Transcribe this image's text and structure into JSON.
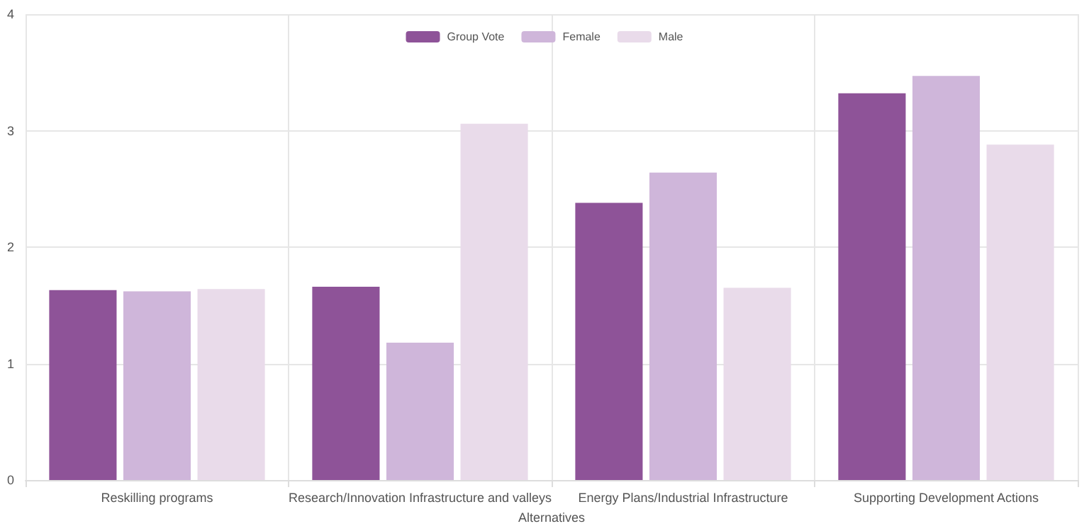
{
  "chart_data": {
    "type": "bar",
    "xlabel": "Alternatives",
    "categories": [
      "Reskilling programs",
      "Research/Innovation Infrastructure and valleys",
      "Energy Plans/Industrial Infrastructure",
      "Supporting Development Actions"
    ],
    "series": [
      {
        "name": "Group Vote",
        "color": "#8e5398",
        "values": [
          1.63,
          1.66,
          2.38,
          3.32
        ]
      },
      {
        "name": "Female",
        "color": "#cfb6da",
        "values": [
          1.62,
          1.18,
          2.64,
          3.47
        ]
      },
      {
        "name": "Male",
        "color": "#e9dbea",
        "values": [
          1.64,
          3.06,
          1.65,
          2.88
        ]
      }
    ],
    "ylim": [
      0,
      4
    ],
    "yticks": [
      0,
      1,
      2,
      3,
      4
    ],
    "grid": true,
    "legend": "top"
  }
}
